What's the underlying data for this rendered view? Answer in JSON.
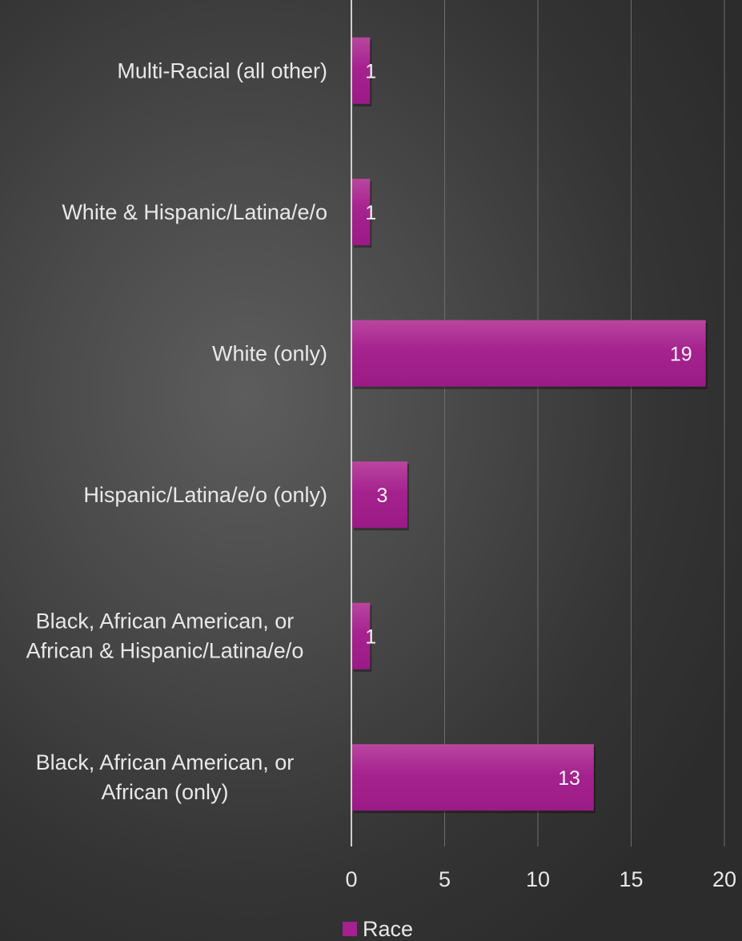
{
  "chart_data": {
    "type": "bar",
    "orientation": "horizontal",
    "categories": [
      [
        "Multi-Racial (all other)"
      ],
      [
        "White & Hispanic/Latina/e/o"
      ],
      [
        "White (only)"
      ],
      [
        "Hispanic/Latina/e/o (only)"
      ],
      [
        "Black, African American, or",
        "African & Hispanic/Latina/e/o"
      ],
      [
        "Black, African American, or",
        "African (only)"
      ]
    ],
    "series": [
      {
        "name": "Race",
        "values": [
          1,
          1,
          19,
          3,
          1,
          13
        ],
        "color": "#a4218f"
      }
    ],
    "xticks": [
      "0",
      "5",
      "10",
      "15",
      "20"
    ],
    "xlim": [
      0,
      20
    ],
    "grid": true,
    "data_labels": true,
    "legend": {
      "position": "bottom",
      "entries": [
        "Race"
      ]
    }
  }
}
